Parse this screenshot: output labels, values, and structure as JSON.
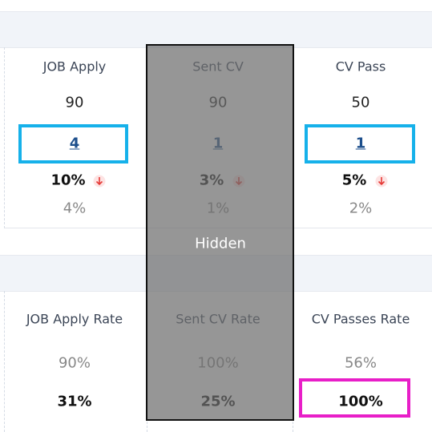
{
  "panels": [
    {
      "columns": [
        {
          "label": "JOB Apply",
          "value": "90",
          "link": "4",
          "rate": "10%",
          "sub": "4%"
        },
        {
          "label": "Sent CV",
          "value": "90",
          "link": "1",
          "rate": "3%",
          "sub": "1%"
        },
        {
          "label": "CV Pass",
          "value": "50",
          "link": "1",
          "rate": "5%",
          "sub": "2%"
        }
      ]
    },
    {
      "columns": [
        {
          "label": "JOB Apply Rate",
          "value": "90%",
          "rate": "31%"
        },
        {
          "label": "Sent CV Rate",
          "value": "100%",
          "rate": "25%"
        },
        {
          "label": "CV Passes Rate",
          "value": "56%",
          "rate": "100%"
        }
      ]
    }
  ],
  "overlay": {
    "label": "Hidden"
  }
}
